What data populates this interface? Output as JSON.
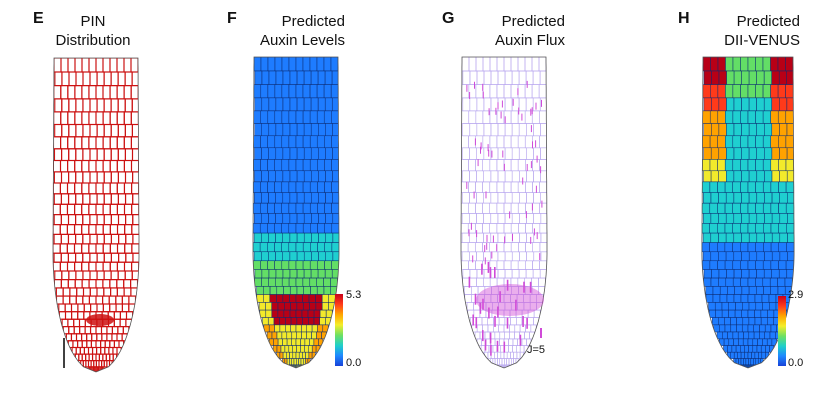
{
  "panels": [
    {
      "letter": "E",
      "title_line1": "PIN",
      "title_line2": "Distribution"
    },
    {
      "letter": "F",
      "title_line1": "Predicted",
      "title_line2": "Auxin Levels",
      "colorbar": {
        "max": "5.3",
        "min": "0.0"
      }
    },
    {
      "letter": "G",
      "title_line1": "Predicted",
      "title_line2": "Auxin Flux",
      "flux_label": "J=5"
    },
    {
      "letter": "H",
      "title_line1": "Predicted",
      "title_line2": "DII-VENUS",
      "colorbar": {
        "max": "2.9",
        "min": "0.0"
      }
    }
  ],
  "colors": {
    "pin_red": "#cc1111",
    "flux_magenta": "#d04bd8",
    "flux_outline": "#b9a8ef"
  }
}
